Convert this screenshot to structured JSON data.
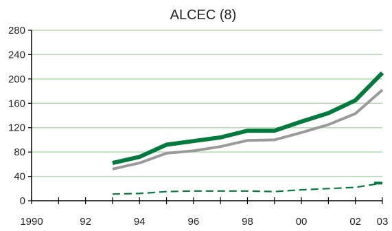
{
  "chart_data": {
    "type": "line",
    "title": "ALCEC (8)",
    "xlabel": "",
    "ylabel": "",
    "xlim": [
      1990,
      2003
    ],
    "ylim": [
      0,
      280
    ],
    "yticks": [
      0,
      40,
      80,
      120,
      160,
      200,
      240,
      280
    ],
    "xticks": [
      1990,
      1992,
      1994,
      1996,
      1998,
      2000,
      2002,
      2003
    ],
    "xtick_labels": [
      "1990",
      "92",
      "94",
      "96",
      "98",
      "00",
      "02",
      "03"
    ],
    "grid": "horizontal",
    "x": [
      1993,
      1994,
      1995,
      1996,
      1997,
      1998,
      1999,
      2000,
      2001,
      2002,
      2003
    ],
    "series": [
      {
        "style": "solid-thick",
        "color": "#007a3d",
        "values": [
          62,
          72,
          92,
          98,
          104,
          115,
          115,
          130,
          144,
          165,
          210
        ]
      },
      {
        "style": "solid",
        "color": "#9a9a9a",
        "values": [
          52,
          62,
          78,
          82,
          89,
          99,
          100,
          112,
          125,
          143,
          182
        ]
      },
      {
        "style": "dashed",
        "color": "#007a3d",
        "values": [
          11,
          12,
          15,
          16,
          16,
          16,
          15,
          18,
          20,
          22,
          29
        ]
      }
    ],
    "colors": {
      "grid": "#b5dbb0",
      "axis": "#000000"
    }
  }
}
